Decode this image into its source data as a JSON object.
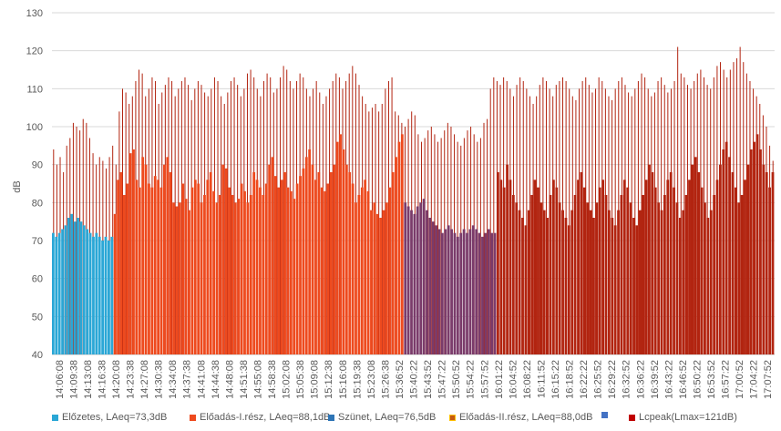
{
  "chart_data": {
    "type": "bar",
    "ylabel": "dB",
    "ylim": [
      40,
      130
    ],
    "yticks": [
      40,
      50,
      60,
      70,
      80,
      90,
      100,
      110,
      120,
      130
    ],
    "xticks": [
      "14:06:08",
      "14:09:38",
      "14:13:08",
      "14:16:38",
      "14:20:08",
      "14:23:38",
      "14:27:08",
      "14:30:38",
      "14:34:08",
      "14:37:38",
      "14:41:08",
      "14:44:38",
      "14:48:08",
      "14:51:38",
      "14:55:08",
      "14:58:38",
      "15:02:08",
      "15:05:38",
      "15:09:08",
      "15:12:38",
      "15:16:08",
      "15:19:38",
      "15:23:08",
      "15:26:38",
      "15:36:52",
      "15:40:22",
      "15:43:52",
      "15:47:22",
      "15:50:52",
      "15:54:22",
      "15:57:52",
      "16:01:22",
      "16:04:52",
      "16:08:22",
      "16:11:52",
      "16:15:22",
      "16:18:52",
      "16:22:22",
      "16:25:52",
      "16:29:22",
      "16:32:52",
      "16:36:22",
      "16:39:52",
      "16:43:22",
      "16:46:52",
      "16:50:22",
      "16:53:52",
      "16:57:22",
      "17:00:52",
      "17:04:22",
      "17:07:52"
    ],
    "grid": true,
    "legend_position": "bottom",
    "series": [
      {
        "name": "Előzetes, LAeq=73,3dB",
        "color": "#2aa7d6",
        "levels": [
          72,
          71,
          72,
          73,
          74,
          76,
          77,
          75,
          76,
          75,
          74,
          73,
          72,
          71,
          72,
          71,
          70,
          71,
          70,
          71
        ]
      },
      {
        "name": "Előadás-I.rész, LAeq=88,1dB",
        "color": "#ee4a1e",
        "levels": [
          77,
          86,
          88,
          82,
          85,
          93,
          94,
          86,
          84,
          92,
          90,
          85,
          84,
          87,
          86,
          84,
          90,
          92,
          88,
          80,
          79,
          80,
          85,
          81,
          78,
          84,
          86,
          85,
          80,
          82,
          86,
          88,
          83,
          80,
          82,
          90,
          89,
          84,
          82,
          80,
          81,
          85,
          83,
          80,
          82,
          88,
          86,
          84,
          82,
          85,
          90,
          92,
          87,
          84,
          86,
          88,
          84,
          83,
          81,
          85,
          87,
          89,
          92,
          94,
          90,
          86,
          88,
          84,
          83,
          85,
          88,
          90,
          96,
          98,
          94,
          90,
          88,
          85,
          80,
          82,
          84,
          86,
          83,
          78,
          80,
          77,
          76,
          78,
          80,
          84,
          88,
          92,
          96,
          98
        ]
      },
      {
        "name": "Szünet, LAeq=76,5dB",
        "color": "#7a3b6a",
        "levels": [
          80,
          79,
          78,
          77,
          79,
          80,
          81,
          78,
          76,
          75,
          74,
          73,
          72,
          73,
          74,
          73,
          72,
          71,
          72,
          73,
          72,
          73,
          74,
          73,
          72,
          71,
          72,
          73,
          72,
          72
        ]
      },
      {
        "name": "Előadás-II.rész, LAeq=88,0dB",
        "color": "#b22410",
        "levels": [
          88,
          86,
          84,
          90,
          86,
          82,
          80,
          78,
          76,
          74,
          78,
          82,
          86,
          84,
          80,
          78,
          76,
          82,
          86,
          84,
          80,
          78,
          76,
          74,
          78,
          82,
          86,
          88,
          84,
          80,
          78,
          76,
          80,
          84,
          86,
          82,
          78,
          76,
          74,
          78,
          82,
          86,
          84,
          80,
          76,
          74,
          78,
          82,
          86,
          90,
          88,
          84,
          80,
          78,
          82,
          86,
          88,
          84,
          80,
          76,
          78,
          82,
          86,
          90,
          92,
          88,
          84,
          80,
          76,
          78,
          82,
          86,
          90,
          94,
          96,
          92,
          88,
          84,
          80,
          82,
          86,
          90,
          94,
          96,
          98,
          94,
          90,
          88,
          84,
          88
        ]
      },
      {
        "name": "Lcpeak(Lmax=121dB)",
        "color": "#b22410",
        "levels": [
          94,
          90,
          92,
          88,
          95,
          97,
          101,
          100,
          99,
          102,
          101,
          97,
          93,
          90,
          92,
          91,
          89,
          92,
          95,
          90,
          104,
          110,
          109,
          106,
          108,
          112,
          115,
          114,
          108,
          110,
          113,
          112,
          106,
          109,
          111,
          113,
          112,
          108,
          110,
          112,
          113,
          111,
          107,
          110,
          112,
          111,
          109,
          108,
          110,
          113,
          112,
          108,
          106,
          109,
          112,
          113,
          111,
          108,
          110,
          114,
          115,
          113,
          110,
          108,
          112,
          114,
          113,
          109,
          110,
          113,
          116,
          115,
          112,
          110,
          112,
          114,
          113,
          110,
          108,
          110,
          112,
          109,
          106,
          108,
          110,
          112,
          114,
          113,
          110,
          112,
          114,
          116,
          114,
          111,
          108,
          106,
          104,
          105,
          106,
          104,
          106,
          110,
          112,
          113,
          104,
          103,
          101,
          100,
          102,
          104,
          103,
          98,
          96,
          97,
          99,
          100,
          98,
          96,
          97,
          99,
          101,
          100,
          98,
          96,
          95,
          97,
          99,
          100,
          98,
          96,
          97,
          101,
          102,
          110,
          113,
          112,
          111,
          113,
          112,
          110,
          108,
          111,
          113,
          112,
          110,
          108,
          106,
          108,
          111,
          113,
          112,
          110,
          108,
          111,
          112,
          113,
          112,
          110,
          108,
          107,
          110,
          112,
          113,
          111,
          109,
          110,
          113,
          112,
          110,
          108,
          107,
          110,
          112,
          113,
          111,
          109,
          108,
          110,
          112,
          114,
          113,
          110,
          108,
          109,
          112,
          113,
          111,
          109,
          110,
          112,
          121,
          114,
          113,
          111,
          110,
          112,
          114,
          115,
          113,
          111,
          110,
          113,
          116,
          117,
          115,
          113,
          115,
          117,
          118,
          121,
          117,
          114,
          112,
          110,
          108,
          106,
          103,
          100,
          95,
          91
        ]
      }
    ]
  }
}
